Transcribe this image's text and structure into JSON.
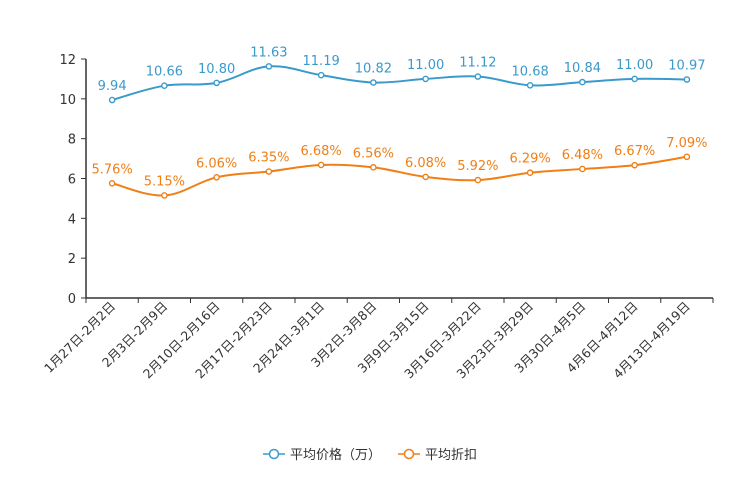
{
  "chart_data": {
    "type": "line",
    "title": "",
    "xlabel": "",
    "ylabel": "",
    "ylim": [
      0,
      12
    ],
    "yticks": [
      "0",
      "2",
      "4",
      "6",
      "8",
      "10",
      "12"
    ],
    "categories": [
      "1月27日-2月2日",
      "2月3日-2月9日",
      "2月10日-2月16日",
      "2月17日-2月23日",
      "2月24日-3月1日",
      "3月2日-3月8日",
      "3月9日-3月15日",
      "3月16日-3月22日",
      "3月23日-3月29日",
      "3月30日-4月5日",
      "4月6日-4月12日",
      "4月13日-4月19日"
    ],
    "series": [
      {
        "name": "平均价格（万）",
        "color": "#3a9acb",
        "values": [
          9.94,
          10.66,
          10.8,
          11.63,
          11.19,
          10.82,
          11.0,
          11.12,
          10.68,
          10.84,
          11.0,
          10.97
        ],
        "labels": [
          "9.94",
          "10.66",
          "10.80",
          "11.63",
          "11.19",
          "10.82",
          "11.00",
          "11.12",
          "10.68",
          "10.84",
          "11.00",
          "10.97"
        ]
      },
      {
        "name": "平均折扣",
        "color": "#f07f16",
        "values": [
          5.76,
          5.15,
          6.06,
          6.35,
          6.68,
          6.56,
          6.08,
          5.92,
          6.29,
          6.48,
          6.67,
          7.09
        ],
        "labels": [
          "5.76%",
          "5.15%",
          "6.06%",
          "6.35%",
          "6.68%",
          "6.56%",
          "6.08%",
          "5.92%",
          "6.29%",
          "6.48%",
          "6.67%",
          "7.09%"
        ]
      }
    ],
    "legend_position": "bottom-center"
  }
}
